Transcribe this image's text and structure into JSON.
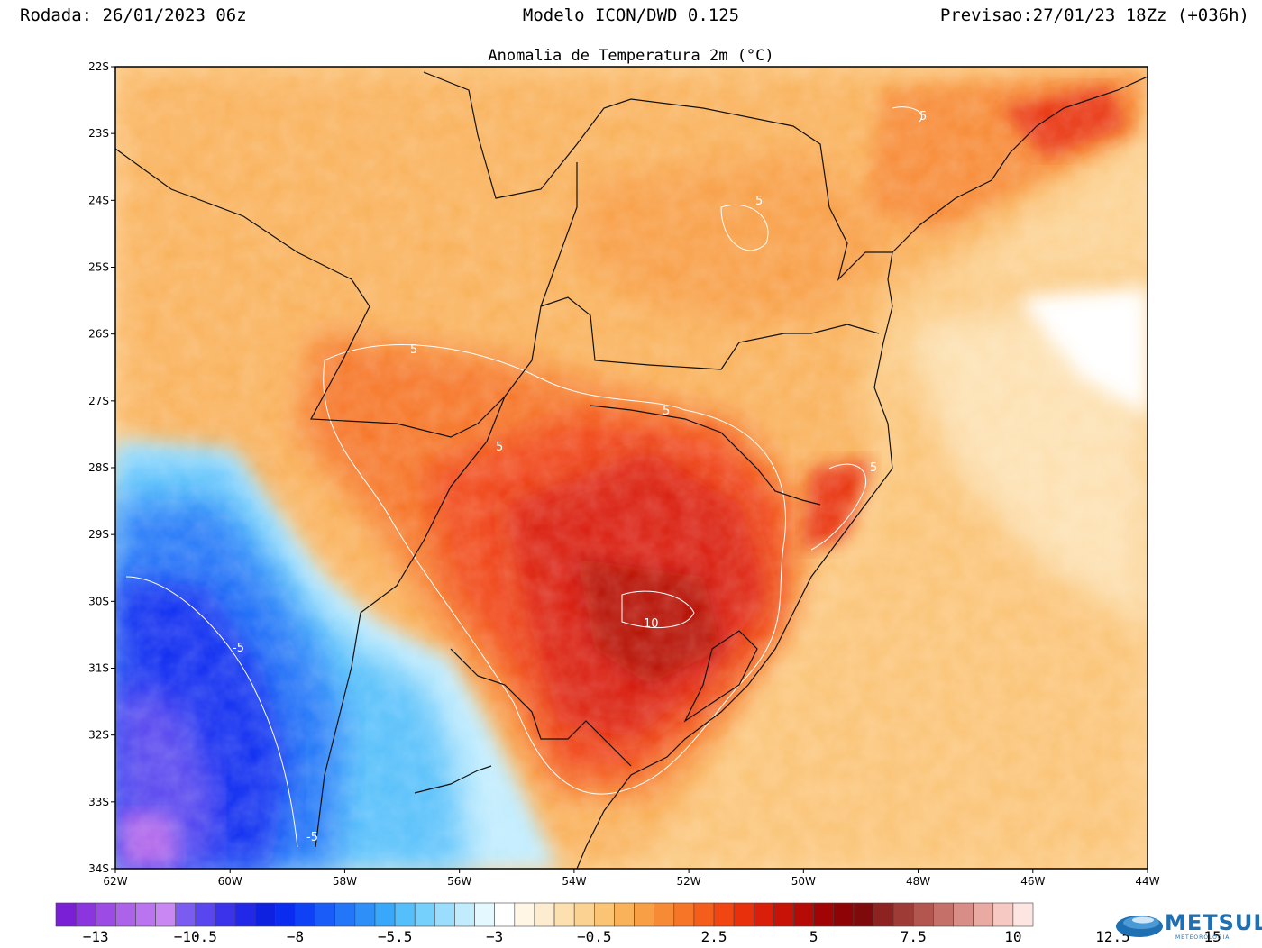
{
  "header": {
    "run": "Rodada: 26/01/2023 06z",
    "model": "Modelo ICON/DWD 0.125",
    "forecast": "Previsao:27/01/23 18Zz (+036h)"
  },
  "map": {
    "title": "Anomalia de Temperatura 2m (°C)",
    "lat_labels": [
      "22S",
      "23S",
      "24S",
      "25S",
      "26S",
      "27S",
      "28S",
      "29S",
      "30S",
      "31S",
      "32S",
      "33S",
      "34S"
    ],
    "lon_labels": [
      "62W",
      "60W",
      "58W",
      "56W",
      "54W",
      "52W",
      "50W",
      "48W",
      "46W",
      "44W"
    ],
    "contour_labels": [
      "5",
      "5",
      "5",
      "5",
      "5",
      "5",
      "10",
      "-5",
      "-5"
    ]
  },
  "legend": {
    "tick_labels": [
      "-13",
      "-10.5",
      "-8",
      "-5.5",
      "-3",
      "-0.5",
      "2.5",
      "5",
      "7.5",
      "10",
      "12.5",
      "15"
    ],
    "colors": [
      "#7a1fd6",
      "#8b35de",
      "#9c4be4",
      "#ad62ea",
      "#bb74ef",
      "#c987f3",
      "#7b5cf0",
      "#5a46ef",
      "#3b32ec",
      "#2228e8",
      "#0e20e0",
      "#0a2cf0",
      "#1042f5",
      "#1a5cf7",
      "#2476f8",
      "#2e8ff9",
      "#3aa8fa",
      "#55bffb",
      "#76d0fc",
      "#9bddfd",
      "#c0ecfe",
      "#e4f8ff",
      "#ffffff",
      "#fff6e6",
      "#feecd0",
      "#fde0b0",
      "#fcd292",
      "#fbc374",
      "#f9b15a",
      "#f89e45",
      "#f78a35",
      "#f67526",
      "#f45e1a",
      "#f14512",
      "#e8300c",
      "#d91f09",
      "#c81207",
      "#b50a06",
      "#a00405",
      "#8e0306",
      "#7e0a0c",
      "#8c2320",
      "#9f3b36",
      "#b3564f",
      "#c5716a",
      "#d88d86",
      "#e9aaa4",
      "#f6c9c3",
      "#fde6e2"
    ],
    "colors_min": -14,
    "colors_step": 0.5
  },
  "logo": {
    "name": "METSUL",
    "tagline": "METEOROLOGIA"
  }
}
